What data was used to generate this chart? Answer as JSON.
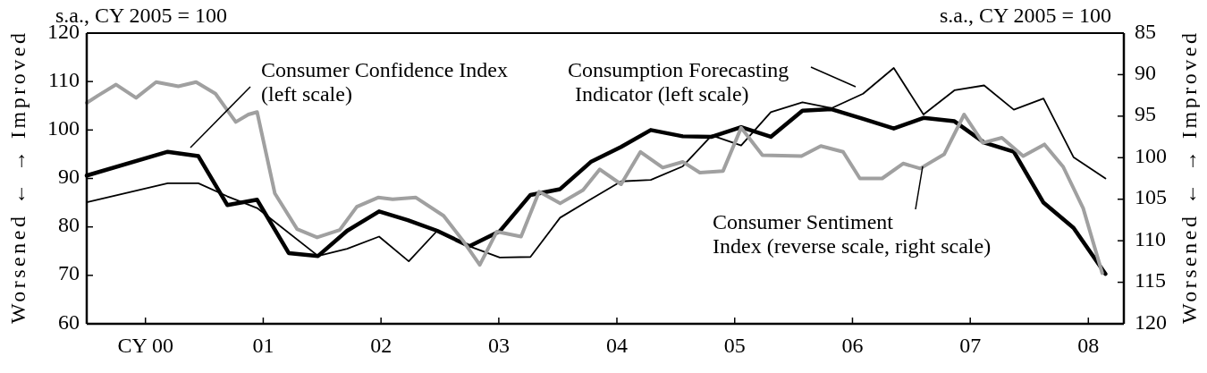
{
  "chart_data": {
    "type": "line",
    "ylabel": "Worsened ← → Improved",
    "y2label": "Worsened ← → Improved",
    "annotations": [
      "s.a., CY 2005 = 100",
      "s.a., CY 2005 = 100"
    ],
    "xlim": [
      "2000-01-01",
      "2008-10-19"
    ],
    "xticks": [
      {
        "value": "2000-07-01",
        "label": "CY 00"
      },
      {
        "value": "2001-07-01",
        "label": "01"
      },
      {
        "value": "2002-07-01",
        "label": "02"
      },
      {
        "value": "2003-07-01",
        "label": "03"
      },
      {
        "value": "2004-07-01",
        "label": "04"
      },
      {
        "value": "2005-07-01",
        "label": "05"
      },
      {
        "value": "2006-07-01",
        "label": "06"
      },
      {
        "value": "2007-07-01",
        "label": "07"
      },
      {
        "value": "2008-07-01",
        "label": "08"
      }
    ],
    "ylim": [
      60,
      120
    ],
    "yticks": [
      60,
      70,
      80,
      90,
      100,
      110,
      120
    ],
    "y2lim": [
      120,
      85
    ],
    "y2ticks": [
      85,
      90,
      95,
      100,
      105,
      110,
      115,
      120
    ],
    "grid": false,
    "marker": "none",
    "line_style": "solid",
    "series": [
      {
        "name": "Consumer Confidence Index\n(left scale)",
        "color": "#000000",
        "x": [
          "2000-01-01",
          "2000-09-08",
          "2000-12-12",
          "2001-03-12",
          "2001-06-12",
          "2001-09-18",
          "2001-12-18",
          "2002-03-18",
          "2002-06-25",
          "2002-09-22",
          "2002-12-22",
          "2003-04-01",
          "2003-07-04",
          "2003-10-07",
          "2004-01-07",
          "2004-04-11",
          "2004-07-14",
          "2004-10-14",
          "2005-01-21",
          "2005-04-21",
          "2005-07-21",
          "2005-10-21",
          "2006-01-27",
          "2006-04-27",
          "2006-08-03",
          "2006-11-06",
          "2007-02-06",
          "2007-05-13",
          "2007-08-13",
          "2007-11-13",
          "2008-02-13",
          "2008-05-16",
          "2008-08-23"
        ],
        "values": [
          90.6,
          95.5,
          94.6,
          84.5,
          85.6,
          74.6,
          74.0,
          79.2,
          83.2,
          81.4,
          79.2,
          76.0,
          79.1,
          86.6,
          87.8,
          93.4,
          96.5,
          100.0,
          98.7,
          98.6,
          100.6,
          98.6,
          104.0,
          104.3,
          102.3,
          100.3,
          102.5,
          101.8,
          97.4,
          95.5,
          85.0,
          79.8,
          70.3
        ]
      },
      {
        "name": "Consumption Forecasting\nIndicator (left scale)",
        "color": "#000000",
        "x": [
          "2000-01-01",
          "2000-09-08",
          "2000-12-12",
          "2001-03-12",
          "2001-06-12",
          "2001-12-18",
          "2002-03-18",
          "2002-06-25",
          "2002-09-25",
          "2002-12-22",
          "2003-04-01",
          "2003-07-04",
          "2003-10-07",
          "2004-01-07",
          "2004-04-11",
          "2004-07-14",
          "2004-10-14",
          "2005-01-21",
          "2005-04-21",
          "2005-07-21",
          "2005-10-21",
          "2006-01-27",
          "2006-04-27",
          "2006-08-03",
          "2006-11-06",
          "2007-02-06",
          "2007-05-13",
          "2007-08-13",
          "2007-11-13",
          "2008-02-13",
          "2008-05-16",
          "2008-08-23"
        ],
        "values": [
          85.1,
          89.0,
          89.0,
          86.3,
          83.9,
          74.0,
          75.5,
          78.0,
          72.9,
          79.2,
          76.0,
          73.7,
          73.8,
          81.9,
          85.7,
          89.4,
          89.7,
          92.5,
          98.9,
          96.8,
          103.7,
          105.7,
          104.5,
          107.5,
          112.8,
          103.2,
          108.2,
          109.2,
          104.2,
          106.5,
          94.4,
          90.0
        ]
      },
      {
        "name": "Consumer Sentiment\nIndex (reverse scale, right scale)",
        "color": "#a0a0a0",
        "axis": "y2",
        "x": [
          "2000-01-01",
          "2000-02-06",
          "2000-04-01",
          "2000-06-02",
          "2000-08-03",
          "2000-10-11",
          "2000-12-05",
          "2001-02-03",
          "2001-04-07",
          "2001-05-16",
          "2001-06-12",
          "2001-08-06",
          "2001-10-14",
          "2001-12-15",
          "2002-02-23",
          "2002-04-17",
          "2002-06-22",
          "2002-08-06",
          "2002-10-17",
          "2003-01-11",
          "2003-03-12",
          "2003-05-03",
          "2003-06-25",
          "2003-09-08",
          "2003-11-03",
          "2004-01-07",
          "2004-03-18",
          "2004-05-09",
          "2004-07-14",
          "2004-09-12",
          "2004-11-20",
          "2005-01-21",
          "2005-03-15",
          "2005-05-26",
          "2005-07-21",
          "2005-08-20",
          "2005-09-25",
          "2006-01-24",
          "2006-03-25",
          "2006-06-02",
          "2006-07-24",
          "2006-10-01",
          "2006-12-05",
          "2007-01-27",
          "2007-04-11",
          "2007-06-12",
          "2007-08-09",
          "2007-10-07",
          "2007-12-12",
          "2008-02-16",
          "2008-04-14",
          "2008-06-15",
          "2008-08-13"
        ],
        "values": [
          93.4,
          92.5,
          91.2,
          92.8,
          90.9,
          91.4,
          90.9,
          92.3,
          95.7,
          94.8,
          94.5,
          104.3,
          108.6,
          109.6,
          108.7,
          105.9,
          104.8,
          105.0,
          104.8,
          107.0,
          110.0,
          112.9,
          108.9,
          109.5,
          104.1,
          105.5,
          103.9,
          101.4,
          103.2,
          99.3,
          101.2,
          100.5,
          101.8,
          101.6,
          96.4,
          97.9,
          99.7,
          99.8,
          98.6,
          99.3,
          102.5,
          102.5,
          100.7,
          101.3,
          99.6,
          94.8,
          98.2,
          97.6,
          99.8,
          98.4,
          101.1,
          106.1,
          113.9
        ]
      }
    ]
  }
}
